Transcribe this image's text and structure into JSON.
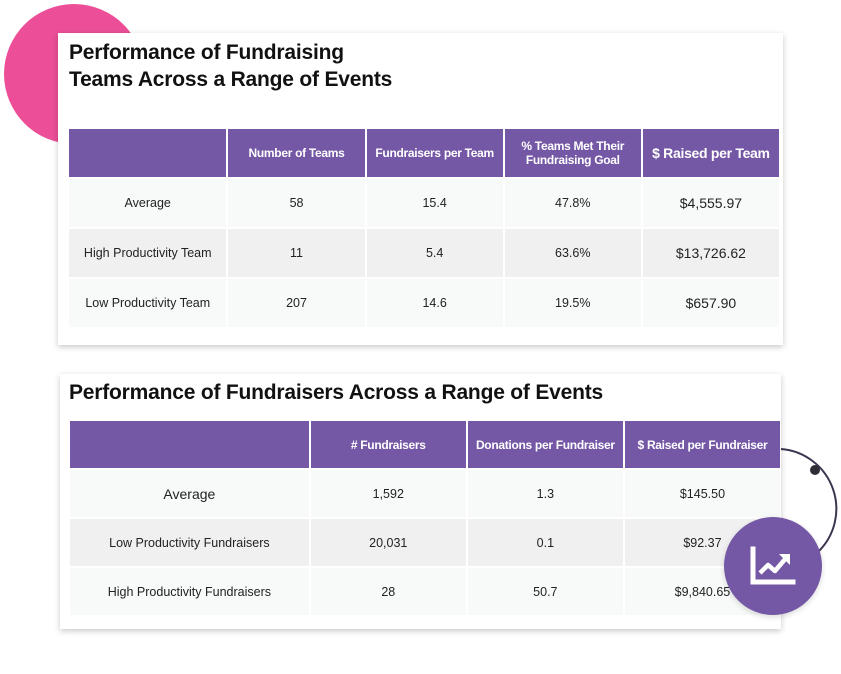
{
  "colors": {
    "accent": "#7457a5",
    "pink": "#ec4f98",
    "row_light": "#f8f9f9",
    "row_dark": "#f0f0f0"
  },
  "teams_table": {
    "title_line1": "Performance of Fundraising",
    "title_line2": "Teams Across a Range of Events",
    "headers": [
      "",
      "Number of Teams",
      "Fundraisers per Team",
      "% Teams Met Their Fundraising Goal",
      "$ Raised per Team"
    ],
    "rows": [
      {
        "label": "Average",
        "values": [
          "58",
          "15.4",
          "47.8%",
          "$4,555.97"
        ]
      },
      {
        "label": "High Productivity Team",
        "values": [
          "11",
          "5.4",
          "63.6%",
          "$13,726.62"
        ]
      },
      {
        "label": "Low Productivity Team",
        "values": [
          "207",
          "14.6",
          "19.5%",
          "$657.90"
        ]
      }
    ]
  },
  "fundraisers_table": {
    "title": "Performance of Fundraisers Across a Range of Events",
    "headers": [
      "",
      "# Fundraisers",
      "Donations per Fundraiser",
      "$ Raised per Fundraiser"
    ],
    "rows": [
      {
        "label": "Average",
        "values": [
          "1,592",
          "1.3",
          "$145.50"
        ]
      },
      {
        "label": "Low Productivity Fundraisers",
        "values": [
          "20,031",
          "0.1",
          "$92.37"
        ]
      },
      {
        "label": "High Productivity Fundraisers",
        "values": [
          "28",
          "50.7",
          "$9,840.65"
        ]
      }
    ]
  },
  "badge": {
    "icon": "trending-up-chart-icon"
  }
}
